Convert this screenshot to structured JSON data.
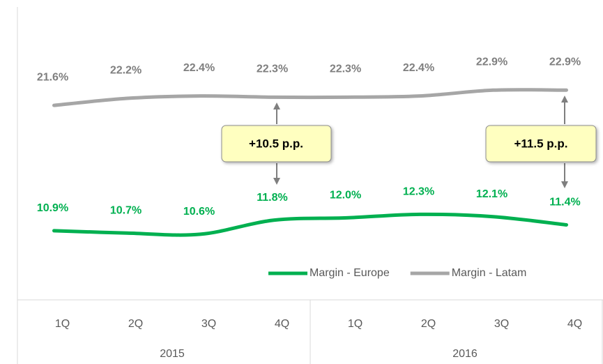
{
  "chart_data": {
    "type": "line",
    "categories": [
      "1Q",
      "2Q",
      "3Q",
      "4Q",
      "1Q",
      "2Q",
      "3Q",
      "4Q"
    ],
    "category_groups": [
      "2015",
      "2016"
    ],
    "series": [
      {
        "name": "Margin - Europe",
        "color": "#00b050",
        "values": [
          10.9,
          10.7,
          10.6,
          11.8,
          12.0,
          12.3,
          12.1,
          11.4
        ],
        "value_labels": [
          "10.9%",
          "10.7%",
          "10.6%",
          "11.8%",
          "12.0%",
          "12.3%",
          "12.1%",
          "11.4%"
        ]
      },
      {
        "name": "Margin - Latam",
        "color": "#a6a6a6",
        "values": [
          21.6,
          22.2,
          22.4,
          22.3,
          22.3,
          22.4,
          22.9,
          22.9
        ],
        "value_labels": [
          "21.6%",
          "22.2%",
          "22.4%",
          "22.3%",
          "22.3%",
          "22.4%",
          "22.9%",
          "22.9%"
        ]
      }
    ],
    "annotations": [
      "+10.5 p.p.",
      "+11.5 p.p."
    ],
    "ylim": [
      5,
      30
    ],
    "legend": "lower right"
  }
}
